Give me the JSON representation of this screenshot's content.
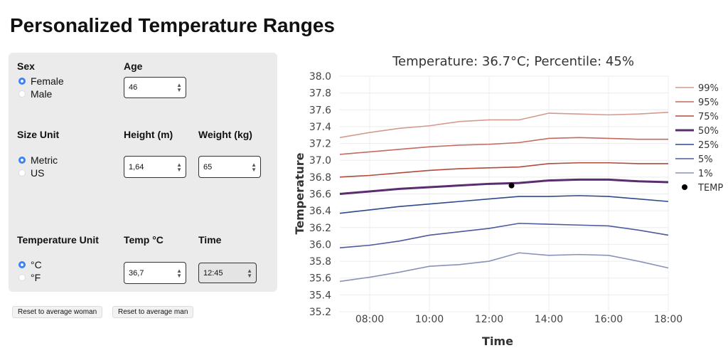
{
  "header": {
    "title": "Personalized Temperature Ranges"
  },
  "form": {
    "sex": {
      "label": "Sex",
      "options": [
        "Female",
        "Male"
      ],
      "selected": 0
    },
    "age": {
      "label": "Age",
      "value": "46"
    },
    "size_unit": {
      "label": "Size Unit",
      "options": [
        "Metric",
        "US"
      ],
      "selected": 0
    },
    "height": {
      "label": "Height (m)",
      "value": "1,64"
    },
    "weight": {
      "label": "Weight (kg)",
      "value": "65"
    },
    "temp_unit": {
      "label": "Temperature Unit",
      "options": [
        "°C",
        "°F"
      ],
      "selected": 0
    },
    "temp": {
      "label": "Temp °C",
      "value": "36,7"
    },
    "time": {
      "label": "Time",
      "value": "12:45"
    }
  },
  "buttons": [
    "Reset to average woman",
    "Reset to average man"
  ],
  "chart_data": {
    "type": "line",
    "title": "Temperature: 36.7°C; Percentile: 45%",
    "x_label": "Time",
    "y_label": "Temperature",
    "x": [
      7,
      8,
      9,
      10,
      11,
      12,
      13,
      14,
      15,
      16,
      17,
      18
    ],
    "xlim": [
      7,
      18
    ],
    "xticks": [
      {
        "value": 8,
        "label": "08:00"
      },
      {
        "value": 10,
        "label": "10:00"
      },
      {
        "value": 12,
        "label": "12:00"
      },
      {
        "value": 14,
        "label": "14:00"
      },
      {
        "value": 16,
        "label": "16:00"
      },
      {
        "value": 18,
        "label": "18:00"
      }
    ],
    "ylim": [
      35.2,
      38.0
    ],
    "yticks": [
      {
        "value": 35.2,
        "label": "35.2"
      },
      {
        "value": 35.4,
        "label": "35.4"
      },
      {
        "value": 35.6,
        "label": "35.6"
      },
      {
        "value": 35.8,
        "label": "35.8"
      },
      {
        "value": 36.0,
        "label": "36.0"
      },
      {
        "value": 36.2,
        "label": "36.2"
      },
      {
        "value": 36.4,
        "label": "36.4"
      },
      {
        "value": 36.6,
        "label": "36.6"
      },
      {
        "value": 36.8,
        "label": "36.8"
      },
      {
        "value": 37.0,
        "label": "37.0"
      },
      {
        "value": 37.2,
        "label": "37.2"
      },
      {
        "value": 37.4,
        "label": "37.4"
      },
      {
        "value": 37.6,
        "label": "37.6"
      },
      {
        "value": 37.8,
        "label": "37.8"
      },
      {
        "value": 38.0,
        "label": "38.0"
      }
    ],
    "grid": true,
    "legend": "right",
    "series": [
      {
        "name": "99%",
        "color": "#d49a90",
        "values": [
          37.27,
          37.33,
          37.38,
          37.41,
          37.46,
          37.48,
          37.48,
          37.56,
          37.55,
          37.54,
          37.55,
          37.57
        ]
      },
      {
        "name": "95%",
        "color": "#c46a5e",
        "values": [
          37.07,
          37.1,
          37.13,
          37.16,
          37.18,
          37.19,
          37.21,
          37.26,
          37.27,
          37.26,
          37.25,
          37.25
        ]
      },
      {
        "name": "75%",
        "color": "#b34a3c",
        "values": [
          36.8,
          36.82,
          36.85,
          36.88,
          36.9,
          36.91,
          36.92,
          36.96,
          36.97,
          36.97,
          36.96,
          36.96
        ]
      },
      {
        "name": "50%",
        "color": "#5b2d6e",
        "values": [
          36.6,
          36.63,
          36.66,
          36.68,
          36.7,
          36.72,
          36.73,
          36.76,
          36.77,
          36.77,
          36.75,
          36.74
        ]
      },
      {
        "name": "25%",
        "color": "#2f4a8a",
        "values": [
          36.37,
          36.41,
          36.45,
          36.48,
          36.51,
          36.54,
          36.57,
          36.57,
          36.58,
          36.57,
          36.54,
          36.51
        ]
      },
      {
        "name": "5%",
        "color": "#4d5a9c",
        "values": [
          35.96,
          35.99,
          36.04,
          36.11,
          36.15,
          36.19,
          36.25,
          36.24,
          36.23,
          36.22,
          36.17,
          36.11
        ]
      },
      {
        "name": "1%",
        "color": "#8a92b8",
        "values": [
          35.56,
          35.61,
          35.67,
          35.74,
          35.76,
          35.8,
          35.9,
          35.87,
          35.88,
          35.87,
          35.8,
          35.72
        ]
      }
    ],
    "points": {
      "name": "TEMP",
      "color": "#000000",
      "x": [
        12.75
      ],
      "values": [
        36.7
      ]
    }
  }
}
